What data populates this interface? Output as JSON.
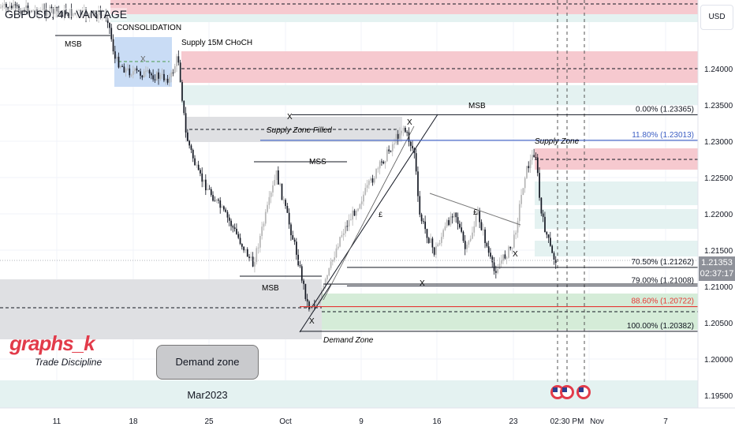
{
  "header": {
    "title": "GBPUSD, 4h, VANTAGE",
    "currency_button": "USD"
  },
  "watermark": {
    "brand": "graphs_k",
    "tagline": "Trade Discipline"
  },
  "callout": "Demand zone Mar2023",
  "current_price": {
    "price": "1.21353",
    "countdown": "02:37:17",
    "line_color": "#2962ff"
  },
  "annotations": {
    "consolidation": "CONSOLIDATION",
    "supply_15m": "Supply 15M CHoCH",
    "msb_top_left": "MSB",
    "msb_top": "MSB",
    "msb_bottom": "MSB",
    "mss": "MSS",
    "supply_zone_filled": "Supply Zone Filled",
    "supply_zone": "Supply Zone",
    "demand_zone": "Demand Zone",
    "x_mark": "X",
    "pound_mark": "£"
  },
  "chart_data": {
    "type": "candlestick",
    "symbol": "GBPUSD",
    "interval": "4h",
    "price_axis": {
      "ticks": [
        "1.24000",
        "1.23500",
        "1.23000",
        "1.22500",
        "1.22000",
        "1.21500",
        "1.21000",
        "1.20500",
        "1.20000",
        "1.19500"
      ],
      "range": [
        1.1925,
        1.2505
      ]
    },
    "time_axis": {
      "ticks": [
        "11",
        "18",
        "25",
        "Oct",
        "9",
        "16",
        "23",
        "02:30 PM",
        "Nov",
        "7"
      ]
    },
    "price_path": [
      [
        "2023-09-05T19:00",
        1.2484
      ],
      [
        "2023-09-15T14:00",
        1.2473
      ],
      [
        "2023-09-16T07:00",
        1.2413
      ],
      [
        "2023-09-17T09:00",
        1.2397
      ],
      [
        "2023-09-21T09:00",
        1.2386
      ],
      [
        "2023-09-22T02:00",
        1.2418
      ],
      [
        "2023-09-22T19:00",
        1.231
      ],
      [
        "2023-09-23T22:00",
        1.2255
      ],
      [
        "2023-09-26T19:00",
        1.219
      ],
      [
        "2023-09-28T23:00",
        1.213
      ],
      [
        "2023-10-01T03:00",
        1.2255
      ],
      [
        "2023-10-02T23:00",
        1.2147
      ],
      [
        "2023-10-04T01:00",
        1.2071
      ],
      [
        "2023-10-05T03:00",
        1.2082
      ],
      [
        "2023-10-06T23:00",
        1.2168
      ],
      [
        "2023-10-09T20:00",
        1.2245
      ],
      [
        "2023-10-12T18:00",
        1.2321
      ],
      [
        "2023-10-13T20:00",
        1.2283
      ],
      [
        "2023-10-14T05:00",
        1.2201
      ],
      [
        "2023-10-15T15:00",
        1.2147
      ],
      [
        "2023-10-17T11:00",
        1.2207
      ],
      [
        "2023-10-18T13:00",
        1.2147
      ],
      [
        "2023-10-19T15:00",
        1.2201
      ],
      [
        "2023-10-21T02:00",
        1.212
      ],
      [
        "2023-10-22T21:00",
        1.2158
      ],
      [
        "2023-10-23T23:00",
        1.2255
      ],
      [
        "2023-10-24T22:00",
        1.2288
      ],
      [
        "2023-10-25T10:00",
        1.2201
      ],
      [
        "2023-10-26T12:00",
        1.2141
      ],
      [
        "2023-10-26T21:00",
        1.21353
      ]
    ],
    "fib_levels": [
      {
        "label": "0.00% (1.23365)",
        "price": 1.23365,
        "color": "#131722"
      },
      {
        "label": "11.80% (1.23013)",
        "price": 1.23013,
        "color": "#3d5fc4"
      },
      {
        "label": "70.50% (1.21262)",
        "price": 1.21262,
        "color": "#131722"
      },
      {
        "label": "79.00% (1.21008)",
        "price": 1.21008,
        "color": "#131722"
      },
      {
        "label": "88.60% (1.20722)",
        "price": 1.20722,
        "color": "#e53935"
      },
      {
        "label": "100.00% (1.20382)",
        "price": 1.20382,
        "color": "#131722"
      }
    ],
    "zone_colors": {
      "supply": "#f6c9cf",
      "demand": "#d5ecd8",
      "neutral": "#e4f2f1",
      "consolidation": "#c9dcf5",
      "grey": "#dfe0e3"
    },
    "grid": true
  }
}
